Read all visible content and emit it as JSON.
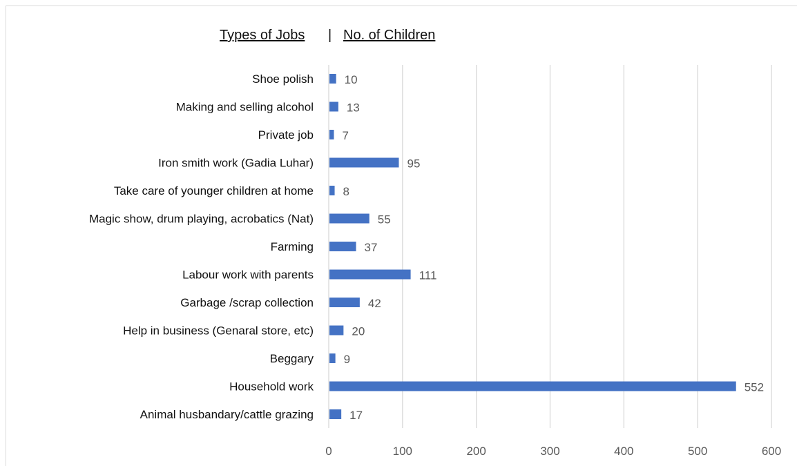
{
  "chart_data": {
    "type": "bar",
    "orientation": "horizontal",
    "title_left": "Types of Jobs",
    "title_separator": "|",
    "title_right": "No. of Children",
    "categories": [
      "Shoe polish",
      "Making and selling alcohol",
      "Private job",
      "Iron smith work (Gadia Luhar)",
      "Take care of younger children at home",
      "Magic show, drum playing, acrobatics (Nat)",
      "Farming",
      "Labour work with parents",
      "Garbage /scrap collection",
      "Help in business (Genaral store, etc)",
      "Beggary",
      "Household work",
      "Animal husbandary/cattle grazing"
    ],
    "values": [
      10,
      13,
      7,
      95,
      8,
      55,
      37,
      111,
      42,
      20,
      9,
      552,
      17
    ],
    "xlim": [
      0,
      600
    ],
    "xticks": [
      0,
      100,
      200,
      300,
      400,
      500,
      600
    ],
    "grid": "vertical",
    "bar_color": "#4472c4",
    "grid_color": "#d9d9d9",
    "label_color": "#595959",
    "category_color": "#111111",
    "legend": "none"
  }
}
